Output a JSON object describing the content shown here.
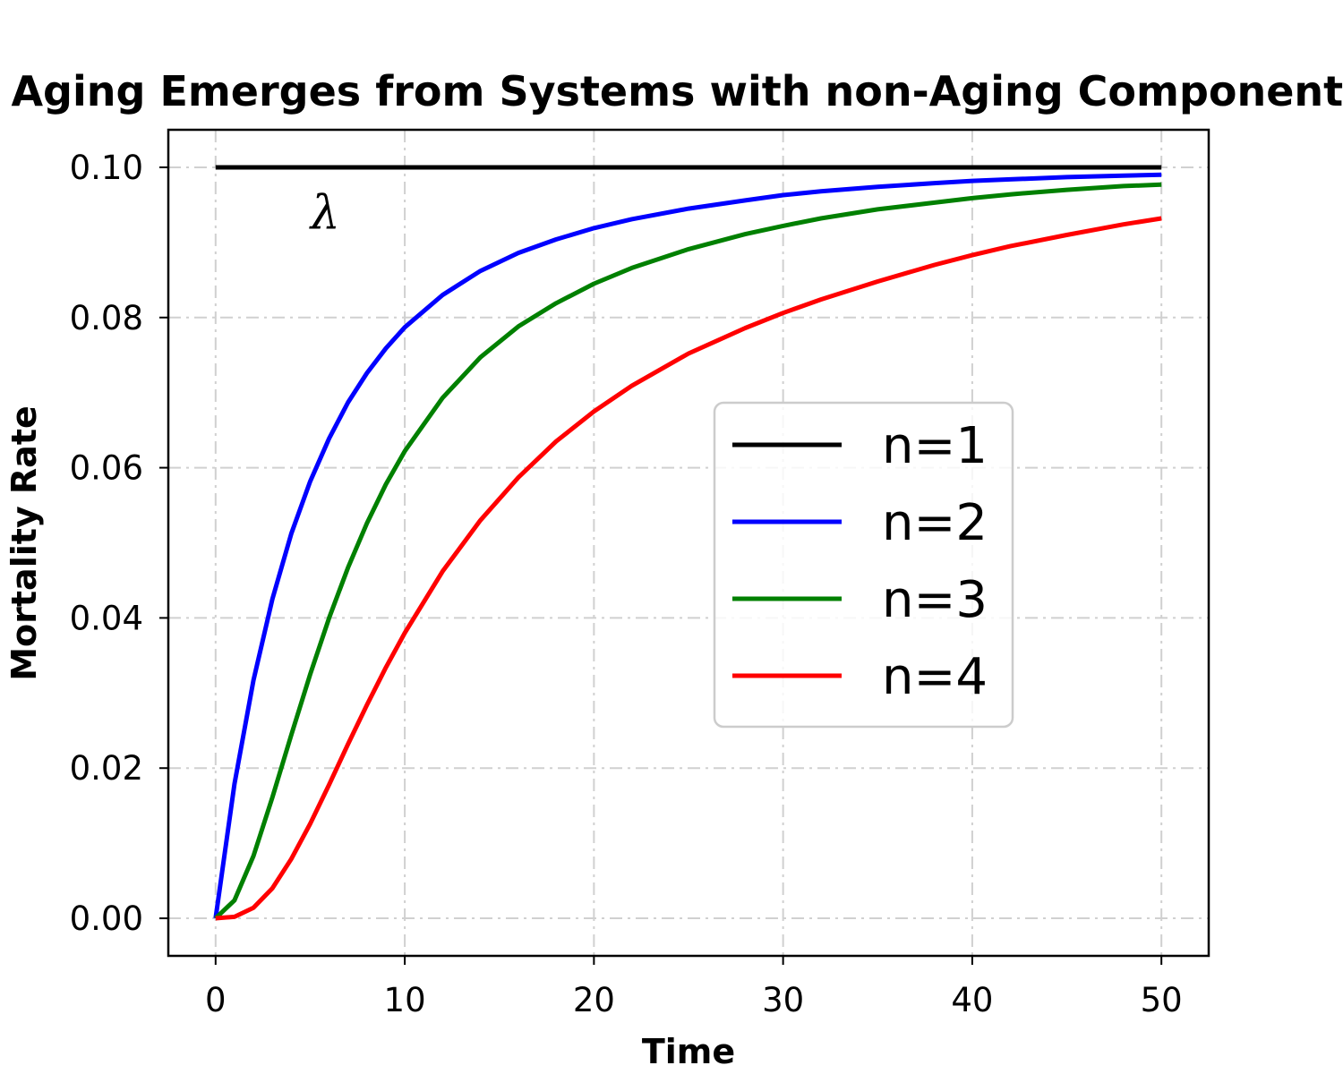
{
  "chart_data": {
    "type": "line",
    "title": "Aging Emerges from Systems with non-Aging Components",
    "xlabel": "Time",
    "ylabel": "Mortality Rate",
    "xlim": [
      -2.5,
      52.5
    ],
    "ylim": [
      -0.005,
      0.105
    ],
    "xticks": [
      0,
      10,
      20,
      30,
      40,
      50
    ],
    "xtick_labels": [
      "0",
      "10",
      "20",
      "30",
      "40",
      "50"
    ],
    "yticks": [
      0.0,
      0.02,
      0.04,
      0.06,
      0.08,
      0.1
    ],
    "ytick_labels": [
      "0.00",
      "0.02",
      "0.04",
      "0.06",
      "0.08",
      "0.10"
    ],
    "grid": true,
    "legend_position": "center-right",
    "annotation": {
      "text": "λ",
      "x": 5.8,
      "y": 0.094
    },
    "x": [
      0,
      1,
      2,
      3,
      4,
      5,
      6,
      7,
      8,
      9,
      10,
      12,
      14,
      16,
      18,
      20,
      22,
      25,
      28,
      30,
      32,
      35,
      38,
      40,
      42,
      45,
      48,
      50
    ],
    "series": [
      {
        "name": "n=1",
        "color": "#000000",
        "values": [
          0.1,
          0.1,
          0.1,
          0.1,
          0.1,
          0.1,
          0.1,
          0.1,
          0.1,
          0.1,
          0.1,
          0.1,
          0.1,
          0.1,
          0.1,
          0.1,
          0.1,
          0.1,
          0.1,
          0.1,
          0.1,
          0.1,
          0.1,
          0.1,
          0.1,
          0.1,
          0.1,
          0.1
        ]
      },
      {
        "name": "n=2",
        "color": "#0000ff",
        "values": [
          0.0,
          0.0179,
          0.0317,
          0.0425,
          0.0512,
          0.0582,
          0.0639,
          0.0687,
          0.0726,
          0.0759,
          0.0787,
          0.083,
          0.0862,
          0.0886,
          0.0904,
          0.0919,
          0.0931,
          0.0945,
          0.0956,
          0.0963,
          0.0968,
          0.0974,
          0.0979,
          0.0982,
          0.0984,
          0.0987,
          0.0989,
          0.099
        ]
      },
      {
        "name": "n=3",
        "color": "#008000",
        "values": [
          0.0,
          0.0024,
          0.0083,
          0.0161,
          0.0244,
          0.0325,
          0.04,
          0.0467,
          0.0526,
          0.0578,
          0.0622,
          0.0693,
          0.0747,
          0.0788,
          0.0819,
          0.0845,
          0.0866,
          0.0891,
          0.0911,
          0.0922,
          0.0932,
          0.0944,
          0.0953,
          0.0959,
          0.0964,
          0.097,
          0.0975,
          0.0977
        ]
      },
      {
        "name": "n=4",
        "color": "#ff0000",
        "values": [
          0.0,
          0.0002,
          0.0014,
          0.004,
          0.0079,
          0.0126,
          0.0178,
          0.0232,
          0.0284,
          0.0334,
          0.038,
          0.0462,
          0.053,
          0.0587,
          0.0635,
          0.0675,
          0.0709,
          0.0752,
          0.0786,
          0.0806,
          0.0824,
          0.0848,
          0.087,
          0.0883,
          0.0895,
          0.091,
          0.0924,
          0.0932
        ]
      }
    ]
  }
}
